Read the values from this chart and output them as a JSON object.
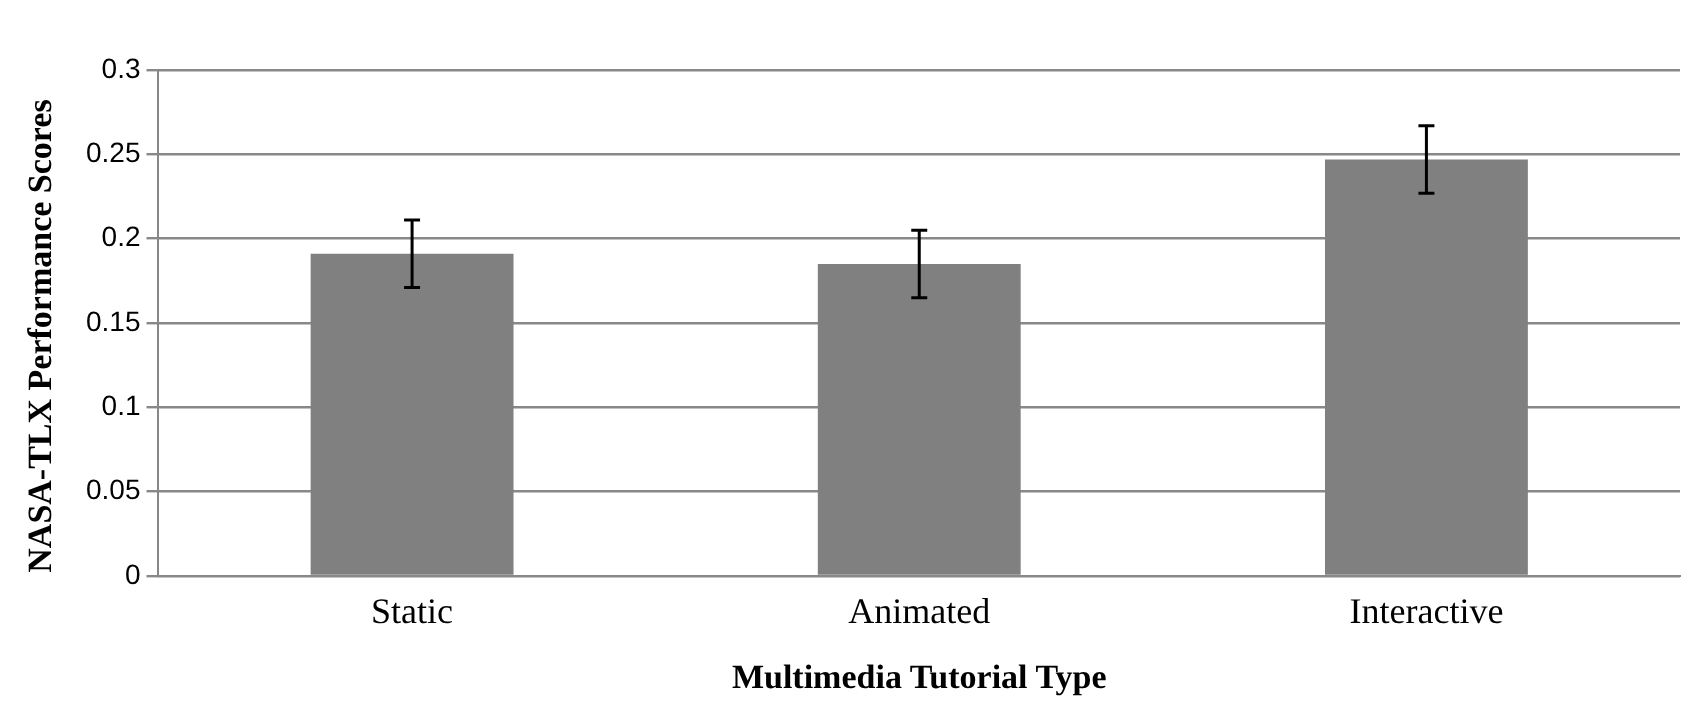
{
  "chart_data": {
    "type": "bar",
    "xlabel": "Multimedia Tutorial Type",
    "ylabel": "NASA-TLX Performance Scores",
    "categories": [
      "Static",
      "Animated",
      "Interactive"
    ],
    "values": [
      0.191,
      0.185,
      0.247
    ],
    "errors": [
      0.02,
      0.02,
      0.02
    ],
    "color": "#808080",
    "ylim": [
      0,
      0.3
    ],
    "yticks": [
      0,
      0.05,
      0.1,
      0.15,
      0.2,
      0.25,
      0.3
    ],
    "grid": "y",
    "legend": false
  }
}
